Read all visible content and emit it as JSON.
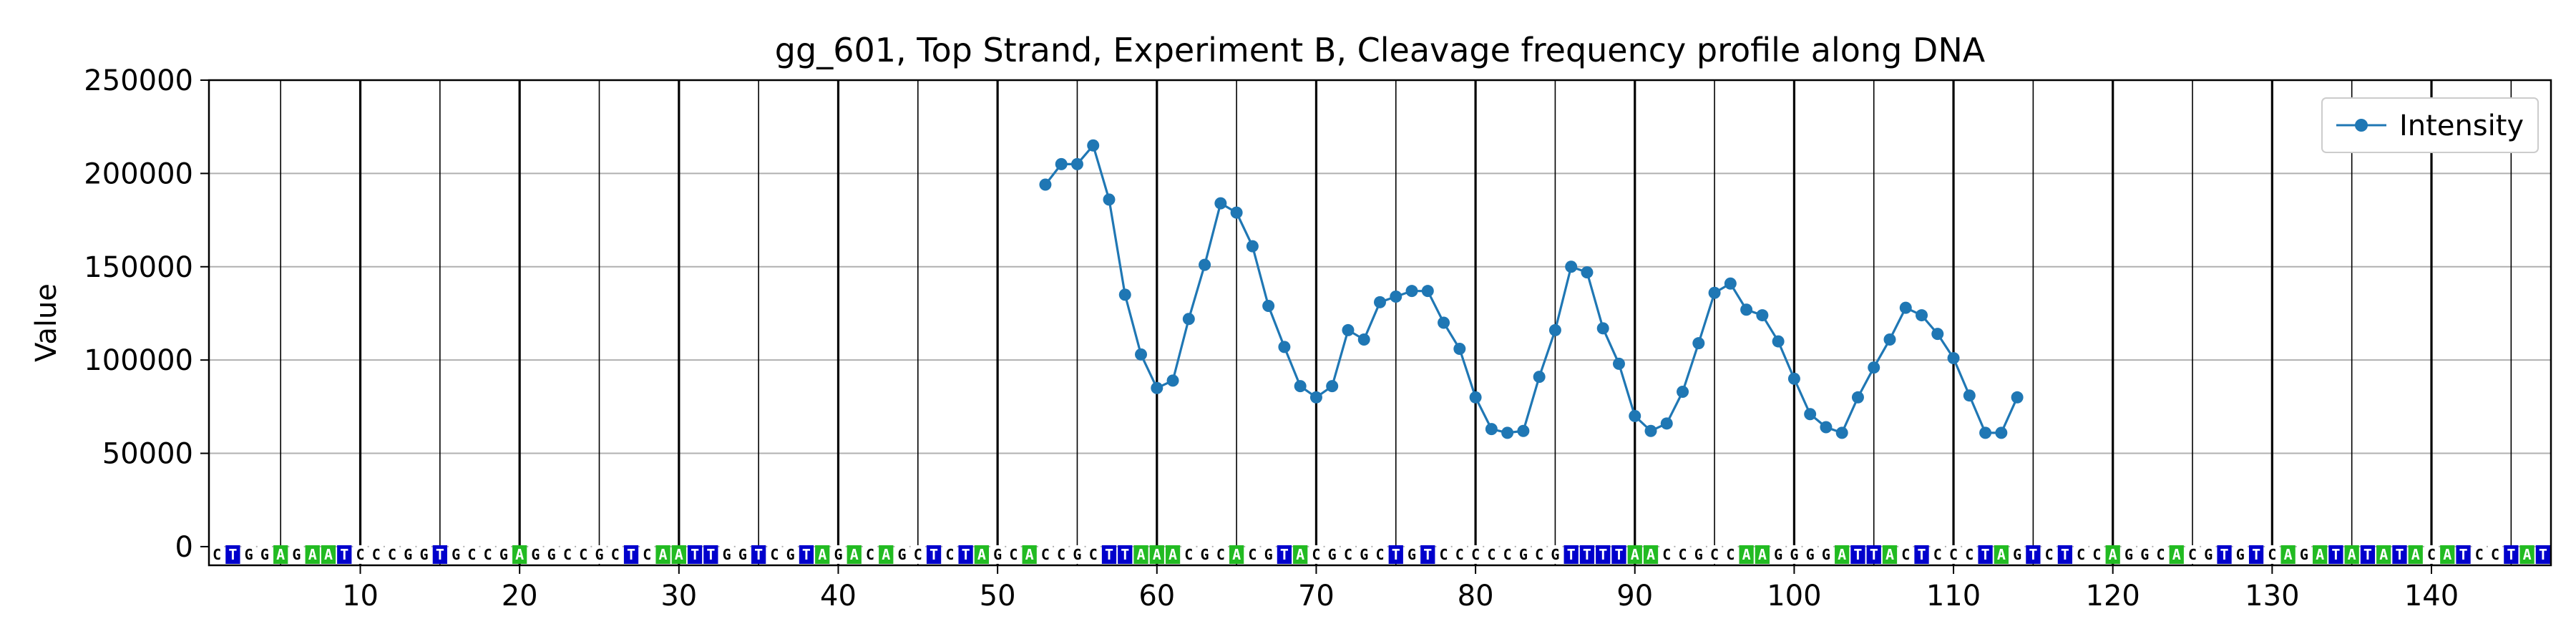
{
  "chart_data": {
    "type": "line",
    "title": "gg_601, Top Strand, Experiment B, Cleavage frequency profile along DNA",
    "xlabel": "",
    "ylabel": "Value",
    "xlim": [
      0.5,
      147.5
    ],
    "ylim": [
      -10000,
      250000
    ],
    "yticks": [
      0,
      50000,
      100000,
      150000,
      200000,
      250000
    ],
    "xticks": [
      10,
      20,
      30,
      40,
      50,
      60,
      70,
      80,
      90,
      100,
      110,
      120,
      130,
      140
    ],
    "grid": true,
    "legend_position": "top-right",
    "sequence": "CTGGAGAATCCCGGTGCCGAGGCCGCTCAATTGGTCGTAGACAGCTCTAGCACCGCTTAAACGCACGTACGCGCTGTCCCCCGCGTTTTAACCGCCAAGGGGATTACTCCCTAGTCTCCAGGCACGTGTCAGATATATACATCCTAT",
    "series": [
      {
        "name": "Intensity",
        "color": "#1f77b4",
        "x": [
          53,
          54,
          55,
          56,
          57,
          58,
          59,
          60,
          61,
          62,
          63,
          64,
          65,
          66,
          67,
          68,
          69,
          70,
          71,
          72,
          73,
          74,
          75,
          76,
          77,
          78,
          79,
          80,
          81,
          82,
          83,
          84,
          85,
          86,
          87,
          88,
          89,
          90,
          91,
          92,
          93,
          94,
          95,
          96,
          97,
          98,
          99,
          100,
          101,
          102,
          103,
          104,
          105,
          106,
          107,
          108,
          109,
          110,
          111,
          112,
          113,
          114
        ],
        "y": [
          194000,
          205000,
          205000,
          215000,
          186000,
          135000,
          103000,
          85000,
          89000,
          122000,
          151000,
          184000,
          179000,
          161000,
          129000,
          107000,
          86000,
          80000,
          86000,
          116000,
          111000,
          131000,
          134000,
          137000,
          137000,
          120000,
          106000,
          80000,
          63000,
          61000,
          62000,
          91000,
          116000,
          150000,
          147000,
          117000,
          98000,
          70000,
          62000,
          66000,
          83000,
          109000,
          136000,
          141000,
          127000,
          124000,
          110000,
          90000,
          71000,
          64000,
          61000,
          80000,
          96000,
          111000,
          128000,
          124000,
          114000,
          101000,
          81000,
          61000,
          61000,
          80000
        ]
      }
    ]
  },
  "colors": {
    "A": "#22bb22",
    "T": "#0000cc",
    "C": "#ffffff",
    "G": "#ffffff"
  }
}
